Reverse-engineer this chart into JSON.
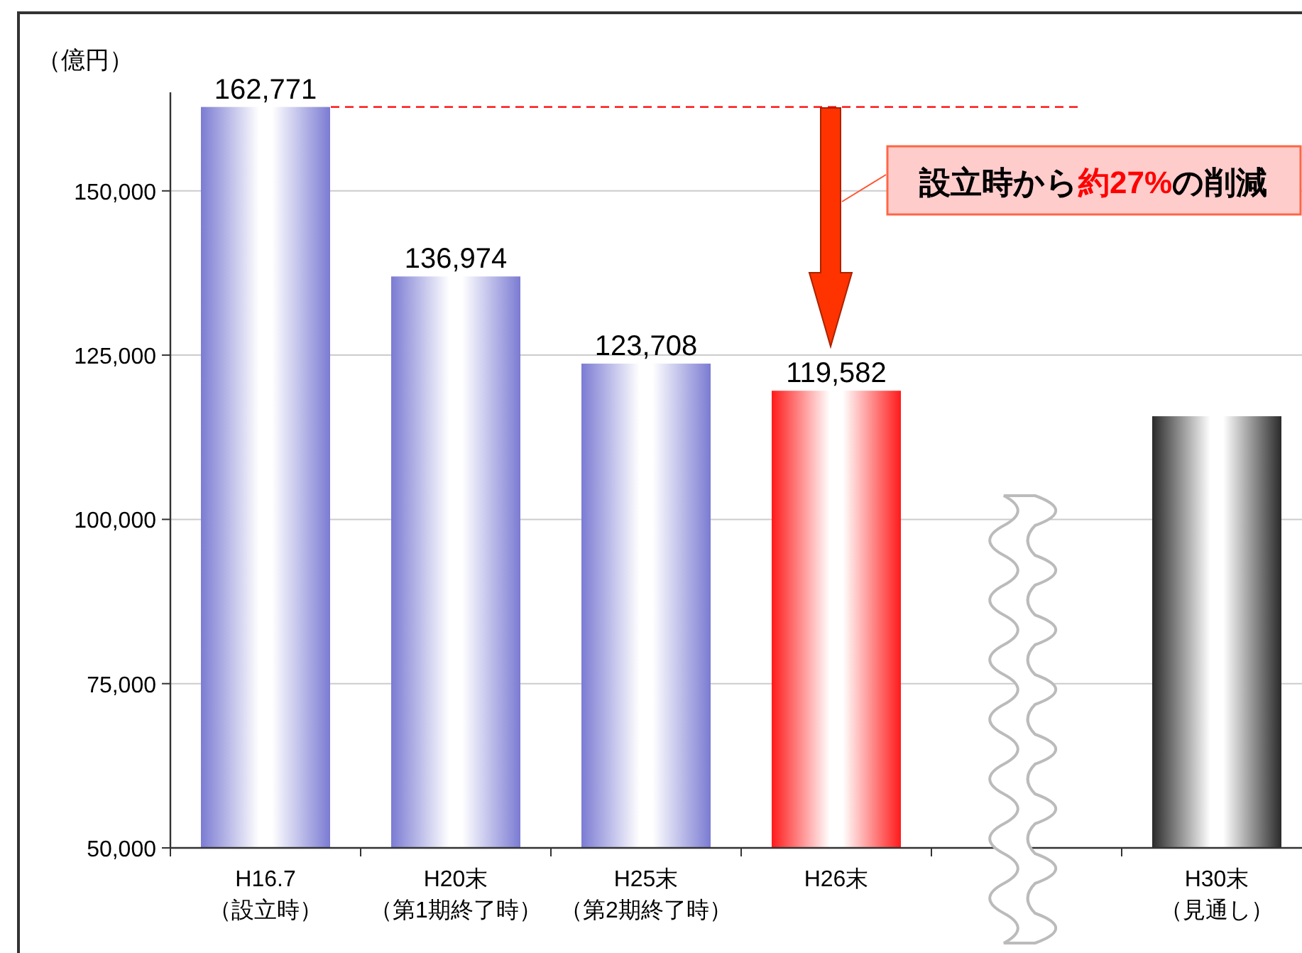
{
  "chart_data": {
    "type": "bar",
    "ylabel": "（億円）",
    "categories": [
      "H16.7（設立時）",
      "H20末（第1期終了時）",
      "H25末（第2期終了時）",
      "H26末",
      null,
      "H30末（見通し）"
    ],
    "values": [
      162771,
      136974,
      123708,
      119582,
      null,
      115700
    ],
    "value_labels": [
      "162,771",
      "136,974",
      "123,708",
      "119,582",
      null,
      null
    ],
    "colors": [
      "#7b7bd3",
      "#7b7bd3",
      "#7b7bd3",
      "#ff1a1a",
      null,
      "#2a2a2a"
    ],
    "ylim": [
      50000,
      165000
    ],
    "yticks": [
      {
        "value": 50000,
        "label": "50,000"
      },
      {
        "value": 75000,
        "label": "75,000"
      },
      {
        "value": 100000,
        "label": "100,000"
      },
      {
        "value": 125000,
        "label": "125,000"
      },
      {
        "value": 150000,
        "label": "150,000"
      }
    ],
    "grid": "y",
    "ref_lines": [
      {
        "axis": "y",
        "value": 162771,
        "color": "#ff0000",
        "line_style": "dashed"
      }
    ],
    "annotations": [
      "設立時から約27%の削減"
    ]
  }
}
